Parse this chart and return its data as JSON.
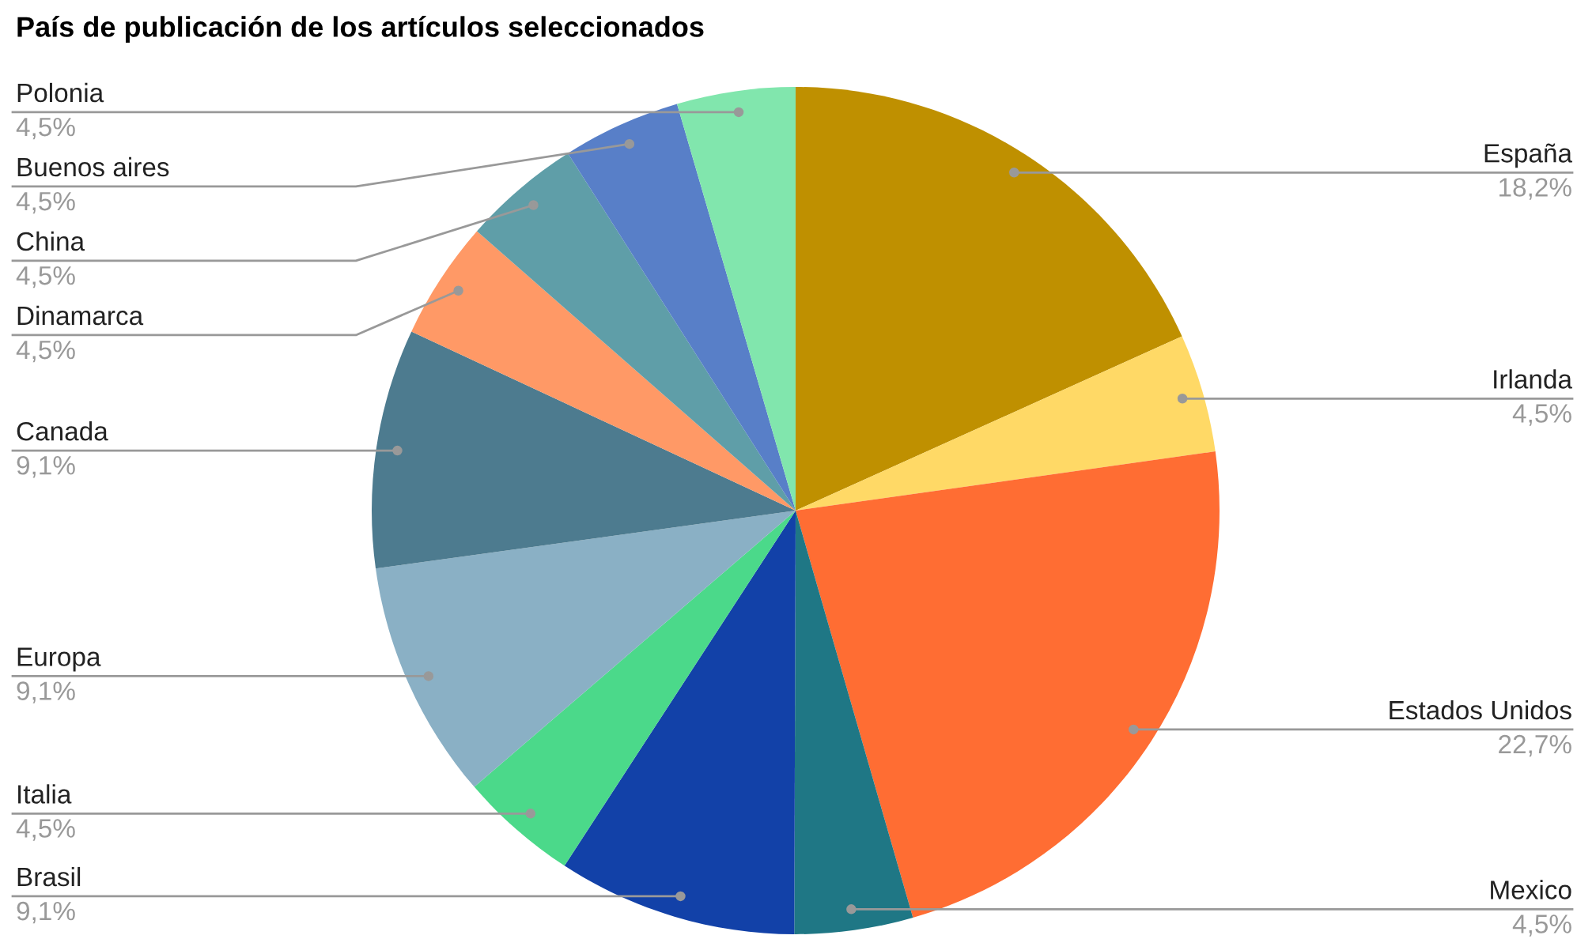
{
  "chart_data": {
    "type": "pie",
    "title": "País de publicación de los artículos seleccionados",
    "categories": [
      "España",
      "Irlanda",
      "Estados Unidos",
      "Mexico",
      "Brasil",
      "Italia",
      "Europa",
      "Canada",
      "Dinamarca",
      "China",
      "Buenos aires",
      "Polonia"
    ],
    "values": [
      18.2,
      4.5,
      22.7,
      4.5,
      9.1,
      4.5,
      9.1,
      9.1,
      4.5,
      4.5,
      4.5,
      4.5
    ],
    "value_labels": [
      "18,2%",
      "4,5%",
      "22,7%",
      "4,5%",
      "9,1%",
      "4,5%",
      "9,1%",
      "9,1%",
      "4,5%",
      "4,5%",
      "4,5%",
      "4,5%"
    ],
    "colors": [
      "#bf9000",
      "#ffd966",
      "#ff6d33",
      "#1f7785",
      "#1241a8",
      "#4bd98a",
      "#8ab0c5",
      "#4d7b8f",
      "#ff9966",
      "#5f9ea8",
      "#587fc8",
      "#81e6ad"
    ]
  }
}
